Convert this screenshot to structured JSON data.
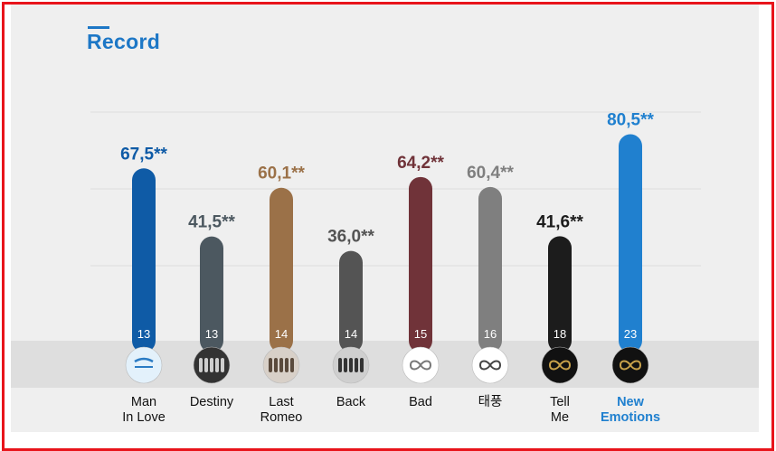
{
  "title": "Record",
  "chart_data": {
    "type": "bar",
    "ylim": [
      0,
      100
    ],
    "grid": true,
    "categories": [
      [
        "Man",
        "In Love"
      ],
      [
        "Destiny"
      ],
      [
        "Last",
        "Romeo"
      ],
      [
        "Back"
      ],
      [
        "Bad"
      ],
      [
        "태풍"
      ],
      [
        "Tell",
        "Me"
      ],
      [
        "New",
        "Emotions"
      ]
    ],
    "values": [
      67.5,
      41.5,
      60.1,
      36.0,
      64.2,
      60.4,
      41.6,
      80.5
    ],
    "value_labels": [
      "67,5**",
      "41,5**",
      "60,1**",
      "36,0**",
      "64,2**",
      "60,4**",
      "41,6**",
      "80,5**"
    ],
    "bar_counts": [
      "13",
      "13",
      "14",
      "14",
      "15",
      "16",
      "18",
      "23"
    ],
    "colors": [
      "#0f5ba6",
      "#4c5860",
      "#9b7148",
      "#545454",
      "#703339",
      "#7f7f7f",
      "#1c1c1c",
      "#2080cf"
    ],
    "label_colors": [
      "#0f5ba6",
      "#4c5860",
      "#9b7148",
      "#545454",
      "#703339",
      "#7f7f7f",
      "#1c1c1c",
      "#2080cf"
    ],
    "category_label_colors": [
      "#111111",
      "#111111",
      "#111111",
      "#111111",
      "#111111",
      "#111111",
      "#111111",
      "#2080cf"
    ],
    "album_icons": [
      "album-man-in-love-icon",
      "album-destiny-icon",
      "album-last-romeo-icon",
      "album-back-icon",
      "album-bad-icon",
      "album-taepung-icon",
      "album-tell-me-icon",
      "album-new-emotions-icon"
    ]
  }
}
